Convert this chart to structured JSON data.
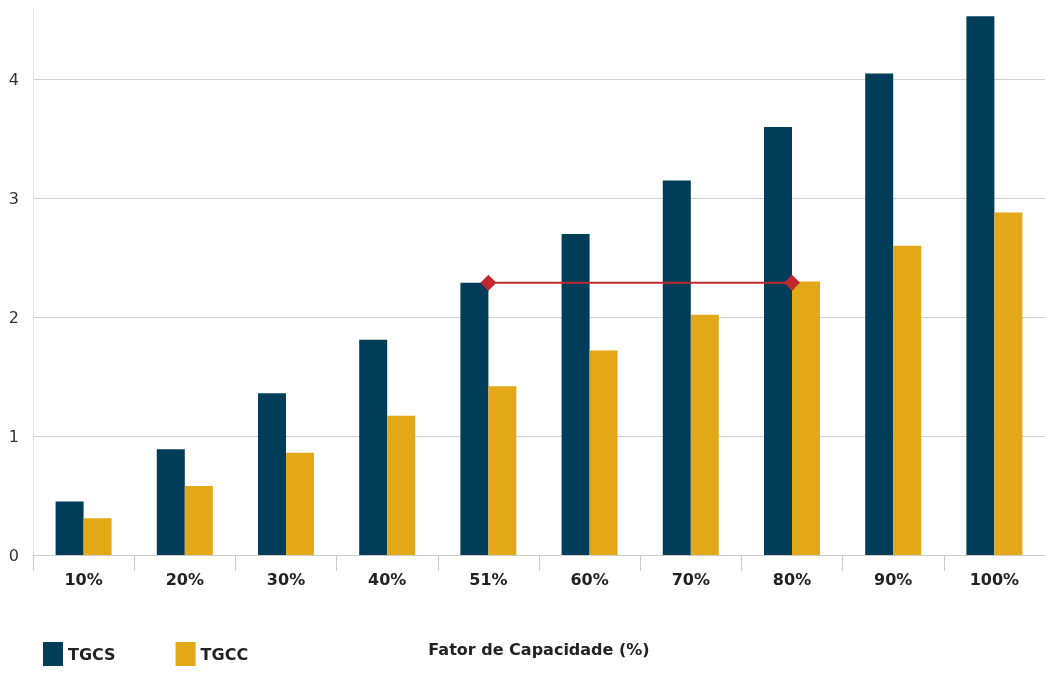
{
  "chart_data": {
    "type": "bar",
    "xlabel": "Fator de Capacidade (%)",
    "categories": [
      "10%",
      "20%",
      "30%",
      "40%",
      "51%",
      "60%",
      "70%",
      "80%",
      "90%",
      "100%"
    ],
    "series": [
      {
        "name": "TGCS",
        "color": "#003d58",
        "values": [
          0.45,
          0.89,
          1.36,
          1.81,
          2.29,
          2.7,
          3.15,
          3.6,
          4.05,
          4.53
        ]
      },
      {
        "name": "TGCC",
        "color": "#e3a817",
        "values": [
          0.31,
          0.58,
          0.86,
          1.17,
          1.42,
          1.72,
          2.02,
          2.3,
          2.6,
          2.88
        ]
      },
      {
        "type": "line",
        "color": "#c0282d",
        "x": [
          "51%",
          "80%"
        ],
        "values": [
          2.29,
          2.29
        ],
        "marker": "diamond",
        "line_style": "solid"
      }
    ],
    "ylim": [
      0,
      4.6
    ],
    "yticks": [
      0,
      1,
      2,
      3,
      4
    ],
    "grid": "y",
    "legend": "bottom left"
  }
}
